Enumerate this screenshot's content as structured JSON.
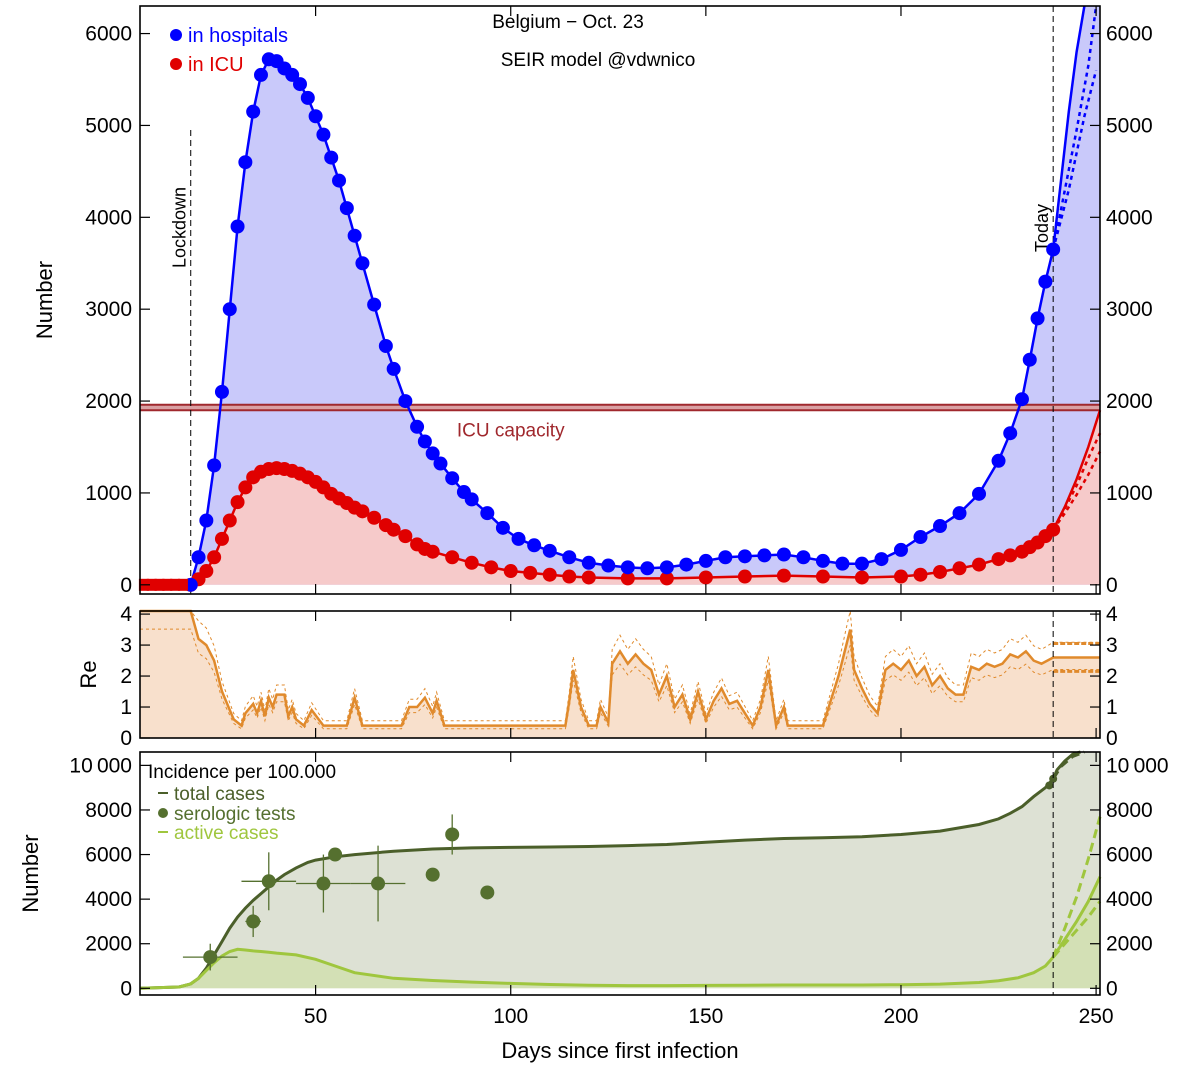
{
  "chart_data": [
    {
      "type": "line",
      "panel": "hospital",
      "title": "Belgium − Oct. 23",
      "subtitle": "SEIR model @vdwnico",
      "ylabel": "Number",
      "xlim": [
        5,
        251
      ],
      "ylim": [
        -100,
        6300
      ],
      "yticks": [
        0,
        1000,
        2000,
        3000,
        4000,
        5000,
        6000
      ],
      "colors": {
        "hospital": "#0000ff",
        "icu": "#e00000",
        "capacity": "#a0282d",
        "hospital_fill": "#c9c9fa",
        "icu_fill": "#f6caca"
      },
      "legend_position": "top-left",
      "series": [
        {
          "name": "in hospitals",
          "color": "#0000ff",
          "x": [
            5,
            18,
            20,
            22,
            24,
            26,
            28,
            30,
            32,
            34,
            36,
            38,
            40,
            42,
            44,
            46,
            48,
            50,
            52,
            54,
            56,
            58,
            60,
            62,
            65,
            68,
            70,
            73,
            76,
            78,
            80,
            82,
            85,
            88,
            90,
            94,
            98,
            102,
            106,
            110,
            115,
            120,
            125,
            130,
            135,
            140,
            145,
            150,
            155,
            160,
            165,
            170,
            175,
            180,
            185,
            190,
            195,
            200,
            205,
            210,
            215,
            220,
            225,
            228,
            231,
            233,
            235,
            237,
            239
          ],
          "y": [
            0,
            0,
            300,
            700,
            1300,
            2100,
            3000,
            3900,
            4600,
            5150,
            5550,
            5720,
            5700,
            5620,
            5550,
            5450,
            5300,
            5100,
            4900,
            4650,
            4400,
            4100,
            3800,
            3500,
            3050,
            2600,
            2350,
            2000,
            1720,
            1560,
            1430,
            1320,
            1160,
            1010,
            930,
            780,
            620,
            500,
            430,
            370,
            300,
            240,
            210,
            190,
            180,
            190,
            220,
            260,
            300,
            310,
            320,
            330,
            300,
            260,
            230,
            230,
            280,
            380,
            520,
            640,
            780,
            990,
            1350,
            1650,
            2020,
            2450,
            2900,
            3300,
            3650
          ]
        },
        {
          "name": "in ICU",
          "color": "#e00000",
          "x": [
            5,
            18,
            20,
            22,
            24,
            26,
            28,
            30,
            32,
            34,
            36,
            38,
            40,
            42,
            44,
            46,
            48,
            50,
            52,
            54,
            56,
            58,
            60,
            62,
            65,
            68,
            70,
            73,
            76,
            78,
            80,
            85,
            90,
            95,
            100,
            105,
            110,
            115,
            120,
            130,
            140,
            150,
            160,
            170,
            180,
            190,
            200,
            205,
            210,
            215,
            220,
            225,
            228,
            231,
            233,
            235,
            237,
            239
          ],
          "y": [
            0,
            0,
            60,
            150,
            300,
            500,
            700,
            900,
            1060,
            1170,
            1230,
            1260,
            1270,
            1260,
            1240,
            1210,
            1170,
            1120,
            1060,
            990,
            940,
            890,
            840,
            800,
            730,
            650,
            600,
            530,
            440,
            390,
            360,
            300,
            240,
            190,
            150,
            130,
            110,
            90,
            80,
            70,
            70,
            80,
            90,
            100,
            90,
            80,
            90,
            110,
            140,
            180,
            220,
            280,
            320,
            360,
            410,
            460,
            530,
            600
          ]
        }
      ],
      "projections": [
        {
          "name": "",
          "color": "#0000ff",
          "dashed": false,
          "x": [
            239,
            241,
            243,
            245,
            247
          ],
          "y": [
            3650,
            4400,
            5150,
            5800,
            6300
          ]
        },
        {
          "name": "",
          "color": "#0000ff",
          "dashed": true,
          "x": [
            239,
            242,
            245,
            248,
            250
          ],
          "y": [
            3650,
            4300,
            4950,
            5650,
            6300
          ]
        },
        {
          "name": "",
          "color": "#0000ff",
          "dashed": true,
          "x": [
            239,
            243,
            247,
            250
          ],
          "y": [
            3650,
            4300,
            5100,
            5600
          ]
        },
        {
          "name": "",
          "color": "#e00000",
          "dashed": false,
          "x": [
            239,
            242,
            245,
            248,
            251
          ],
          "y": [
            600,
            850,
            1150,
            1500,
            1900
          ]
        },
        {
          "name": "",
          "color": "#e00000",
          "dashed": true,
          "x": [
            239,
            242,
            245,
            248,
            251
          ],
          "y": [
            600,
            830,
            1080,
            1380,
            1650
          ]
        },
        {
          "name": "",
          "color": "#e00000",
          "dashed": true,
          "x": [
            239,
            242,
            245,
            248,
            251
          ],
          "y": [
            600,
            780,
            980,
            1200,
            1450
          ]
        }
      ],
      "reference_lines": {
        "capacity": {
          "label": "ICU capacity",
          "y": [
            1900,
            1960
          ]
        },
        "lockdown": {
          "label": "Lockdown",
          "x": 18
        },
        "today": {
          "label": "Today",
          "x": 239
        }
      }
    },
    {
      "type": "area",
      "panel": "re",
      "ylabel": "Re",
      "xlim": [
        5,
        251
      ],
      "ylim": [
        0,
        4.1
      ],
      "yticks": [
        0,
        1,
        2,
        3,
        4
      ],
      "colors": {
        "line": "#e08a2c",
        "fill": "#f8e0cc"
      },
      "series": [
        {
          "name": "Re",
          "x": [
            5,
            18,
            20,
            22,
            24,
            26,
            28,
            29,
            31,
            32,
            34,
            35,
            36,
            37,
            38,
            39,
            40,
            42,
            43,
            44,
            45,
            47,
            49,
            52,
            55,
            58,
            60,
            62,
            65,
            72,
            74,
            76,
            78,
            80,
            81,
            83,
            86,
            100,
            114,
            115,
            116,
            118,
            120,
            122,
            123,
            125,
            126,
            128,
            130,
            132,
            134,
            136,
            138,
            140,
            142,
            144,
            146,
            148,
            150,
            152,
            154,
            156,
            158,
            160,
            162,
            164,
            166,
            168,
            170,
            171,
            173,
            180,
            182,
            184,
            186,
            187,
            188,
            190,
            192,
            194,
            196,
            198,
            200,
            202,
            204,
            206,
            208,
            210,
            212,
            214,
            216,
            218,
            220,
            222,
            224,
            226,
            228,
            230,
            232,
            234,
            236,
            239,
            251
          ],
          "y": [
            4.1,
            4.1,
            3.2,
            3.0,
            2.5,
            1.5,
            0.9,
            0.6,
            0.4,
            0.8,
            1.1,
            0.8,
            1.2,
            0.7,
            1.3,
            1.0,
            1.4,
            1.4,
            0.7,
            1.0,
            0.6,
            0.4,
            0.9,
            0.4,
            0.4,
            0.4,
            1.3,
            0.4,
            0.4,
            0.4,
            1.0,
            1.0,
            1.3,
            0.8,
            1.2,
            0.4,
            0.4,
            0.4,
            0.4,
            1.2,
            2.2,
            1.0,
            0.4,
            0.4,
            1.0,
            0.5,
            2.4,
            2.8,
            2.4,
            2.7,
            2.4,
            2.2,
            1.4,
            2.0,
            1.0,
            1.4,
            0.6,
            1.5,
            0.6,
            1.2,
            1.6,
            1.1,
            1.2,
            0.8,
            0.4,
            1.0,
            2.2,
            0.4,
            1.0,
            0.4,
            0.4,
            0.4,
            1.2,
            2.0,
            3.0,
            3.5,
            2.2,
            1.6,
            1.1,
            0.8,
            2.2,
            2.4,
            2.2,
            2.5,
            2.0,
            2.3,
            1.7,
            2.0,
            1.6,
            1.4,
            1.4,
            2.3,
            2.2,
            2.4,
            2.3,
            2.4,
            2.7,
            2.6,
            2.8,
            2.5,
            2.4,
            2.6,
            2.6
          ]
        }
      ],
      "projections": [
        {
          "name": "",
          "color": "#e08a2c",
          "x": [
            239,
            251
          ],
          "y": [
            3.05,
            3.05
          ]
        },
        {
          "name": "",
          "color": "#e08a2c",
          "x": [
            239,
            251
          ],
          "y": [
            2.15,
            2.15
          ]
        }
      ]
    },
    {
      "type": "scatter",
      "panel": "incidence",
      "xlabel": "Days since first infection",
      "ylabel": "Number",
      "xlim": [
        5,
        251
      ],
      "ylim": [
        -300,
        10600
      ],
      "yticks": [
        0,
        2000,
        4000,
        6000,
        8000,
        10000
      ],
      "ytick_labels": [
        "0",
        "2000",
        "4000",
        "6000",
        "8000",
        "10 000"
      ],
      "xticks": [
        50,
        100,
        150,
        200,
        250
      ],
      "colors": {
        "total": "#4b5f2a",
        "serologic": "#55702f",
        "active": "#9fc63e",
        "fill": "#dde1d4",
        "active_fill": "#cfe0a8"
      },
      "legend_title": "Incidence per 100.000",
      "legend_position": "top-left",
      "series": [
        {
          "name": "total cases",
          "color": "#4b5f2a",
          "x": [
            5,
            15,
            18,
            20,
            22,
            24,
            26,
            28,
            30,
            32,
            34,
            36,
            38,
            40,
            42,
            45,
            48,
            50,
            55,
            60,
            70,
            80,
            90,
            100,
            110,
            120,
            130,
            140,
            150,
            160,
            170,
            180,
            190,
            200,
            210,
            220,
            225,
            228,
            231,
            234,
            237,
            239
          ],
          "y": [
            0,
            60,
            200,
            450,
            900,
            1500,
            2100,
            2700,
            3200,
            3600,
            3950,
            4250,
            4550,
            4850,
            5100,
            5400,
            5650,
            5750,
            5900,
            6000,
            6150,
            6250,
            6300,
            6320,
            6340,
            6360,
            6400,
            6450,
            6550,
            6650,
            6720,
            6750,
            6800,
            6900,
            7050,
            7350,
            7600,
            7850,
            8150,
            8600,
            9000,
            9400
          ]
        },
        {
          "name": "active cases",
          "color": "#9fc63e",
          "x": [
            5,
            15,
            18,
            20,
            22,
            24,
            26,
            28,
            30,
            32,
            34,
            36,
            38,
            40,
            45,
            50,
            55,
            60,
            70,
            80,
            90,
            100,
            110,
            120,
            130,
            140,
            150,
            160,
            170,
            180,
            190,
            200,
            210,
            220,
            225,
            230,
            234,
            237,
            239
          ],
          "y": [
            0,
            60,
            200,
            450,
            800,
            1150,
            1450,
            1650,
            1750,
            1720,
            1680,
            1650,
            1620,
            1580,
            1500,
            1300,
            1000,
            700,
            450,
            350,
            280,
            220,
            170,
            140,
            120,
            120,
            130,
            140,
            150,
            150,
            150,
            160,
            190,
            260,
            340,
            470,
            700,
            1000,
            1400
          ]
        },
        {
          "name": "serologic tests",
          "color": "#55702f",
          "x": [
            23,
            34,
            38,
            52,
            55,
            66,
            80,
            85,
            94
          ],
          "y": [
            1400,
            3000,
            4800,
            4700,
            6000,
            4700,
            5100,
            6900,
            4300
          ],
          "xerr": [
            7,
            2,
            7,
            7,
            0,
            7,
            0,
            0,
            0
          ],
          "yerr": [
            600,
            700,
            1300,
            1300,
            0,
            1700,
            0,
            900,
            0
          ]
        }
      ],
      "projections": [
        {
          "name": "",
          "color": "#4b5f2a",
          "dashed": false,
          "x": [
            239,
            240,
            242,
            244,
            246
          ],
          "y": [
            9400,
            9800,
            10200,
            10500,
            10600
          ]
        },
        {
          "name": "",
          "color": "#4b5f2a",
          "dashed": true,
          "x": [
            239,
            241,
            244,
            247
          ],
          "y": [
            9400,
            9950,
            10400,
            10600
          ]
        },
        {
          "name": "",
          "color": "#9fc63e",
          "dashed": false,
          "x": [
            239,
            242,
            245,
            248,
            251
          ],
          "y": [
            1400,
            2200,
            3000,
            3900,
            5000
          ]
        },
        {
          "name": "",
          "color": "#9fc63e",
          "dashed": true,
          "x": [
            239,
            242,
            245,
            248,
            251
          ],
          "y": [
            1400,
            2700,
            4100,
            5800,
            7700
          ]
        },
        {
          "name": "",
          "color": "#9fc63e",
          "dashed": true,
          "x": [
            239,
            242,
            245,
            248,
            251
          ],
          "y": [
            1400,
            2000,
            2600,
            3200,
            3900
          ]
        }
      ],
      "markers": [
        {
          "color": "#4b5f2a",
          "x": [
            238,
            239
          ],
          "y": [
            9100,
            9400
          ]
        }
      ],
      "reference_lines": {
        "today": {
          "x": 239
        }
      }
    }
  ]
}
